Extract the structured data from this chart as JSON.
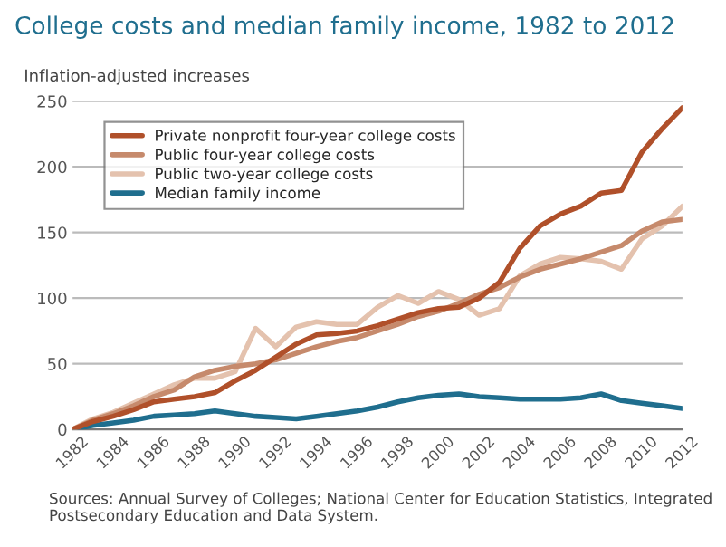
{
  "chart_data": {
    "type": "line",
    "title": "College costs and median family income, 1982 to 2012",
    "ylabel": "Inflation-adjusted increases",
    "x": [
      1982,
      1983,
      1984,
      1985,
      1986,
      1987,
      1988,
      1989,
      1990,
      1991,
      1992,
      1993,
      1994,
      1995,
      1996,
      1997,
      1998,
      1999,
      2000,
      2001,
      2002,
      2003,
      2004,
      2005,
      2006,
      2007,
      2008,
      2009,
      2010,
      2011,
      2012
    ],
    "series": [
      {
        "name": "Private nonprofit four-year college costs",
        "color": "#b0502a",
        "values": [
          0,
          6,
          10,
          15,
          21,
          23,
          25,
          28,
          37,
          45,
          55,
          65,
          72,
          73,
          75,
          79,
          84,
          89,
          92,
          93,
          100,
          112,
          138,
          155,
          164,
          170,
          180,
          182,
          211,
          229,
          245
        ]
      },
      {
        "name": "Public four-year college costs",
        "color": "#c68a6c",
        "values": [
          0,
          7,
          12,
          18,
          25,
          30,
          40,
          45,
          48,
          50,
          53,
          58,
          63,
          67,
          70,
          75,
          80,
          86,
          90,
          96,
          103,
          108,
          116,
          122,
          126,
          130,
          135,
          140,
          151,
          158,
          160
        ]
      },
      {
        "name": "Public two-year college costs",
        "color": "#e4c2ae",
        "values": [
          0,
          8,
          13,
          20,
          27,
          34,
          39,
          39,
          44,
          77,
          63,
          78,
          82,
          80,
          80,
          93,
          102,
          96,
          105,
          99,
          87,
          92,
          117,
          126,
          131,
          130,
          128,
          122,
          145,
          155,
          170
        ]
      },
      {
        "name": "Median family income",
        "color": "#1f6e8e",
        "values": [
          0,
          3,
          5,
          7,
          10,
          11,
          12,
          14,
          12,
          10,
          9,
          8,
          10,
          12,
          14,
          17,
          21,
          24,
          26,
          27,
          25,
          24,
          23,
          23,
          23,
          24,
          27,
          22,
          20,
          18,
          16
        ]
      }
    ],
    "xlim": [
      1982,
      2012
    ],
    "xticks": [
      1982,
      1984,
      1986,
      1988,
      1990,
      1992,
      1994,
      1996,
      1998,
      2000,
      2002,
      2004,
      2006,
      2008,
      2010,
      2012
    ],
    "ylim": [
      0,
      250
    ],
    "yticks": [
      0,
      50,
      100,
      150,
      200,
      250
    ],
    "grid": "y",
    "legend": "top left",
    "marker": "none",
    "line_style": "solid",
    "annotations": [
      "Sources: Annual Survey of Colleges; National Center for Education Statistics, Integrated Postsecondary Education and Data System."
    ]
  }
}
